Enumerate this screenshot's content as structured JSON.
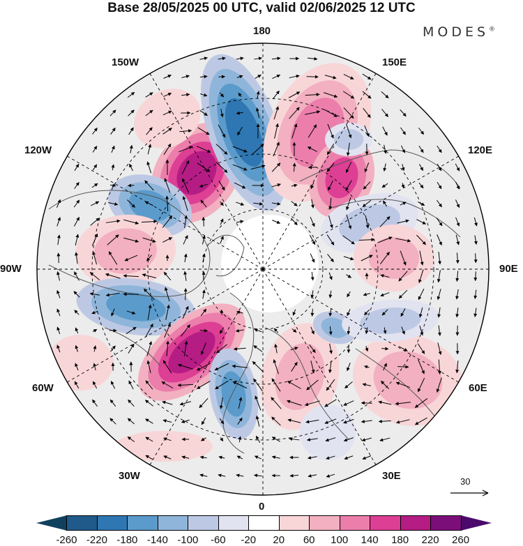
{
  "title": "Base 28/05/2025 00 UTC, valid 02/06/2025 12 UTC",
  "brand": "MODES",
  "brand_mark": "®",
  "longitude_labels": {
    "top": "180",
    "bottom": "0",
    "left": "90W",
    "right": "90E",
    "upper_left": "150W",
    "upper_right": "150E",
    "mid_upper_left": "120W",
    "mid_upper_right": "120E",
    "mid_lower_left": "60W",
    "mid_lower_right": "60E",
    "lower_left": "30W",
    "lower_right": "30E"
  },
  "reference_vector": {
    "label": "30"
  },
  "colorbar": {
    "labels": [
      "-260",
      "-220",
      "-180",
      "-140",
      "-100",
      "-60",
      "-20",
      "20",
      "60",
      "100",
      "140",
      "180",
      "220",
      "260"
    ],
    "colors": [
      "#10405e",
      "#1f5a8a",
      "#2f77b2",
      "#5b9bcb",
      "#8fb6da",
      "#bdc9e4",
      "#e2e3f0",
      "#ffffff",
      "#f8d6d8",
      "#f2b0c0",
      "#ec7eab",
      "#dd3f94",
      "#b51c84",
      "#7c0e79",
      "#4b0a6b"
    ]
  },
  "map": {
    "projection": "north-polar-stereographic",
    "field": "anomaly",
    "arrows": "wind-vectors",
    "dashed_grid": true
  }
}
